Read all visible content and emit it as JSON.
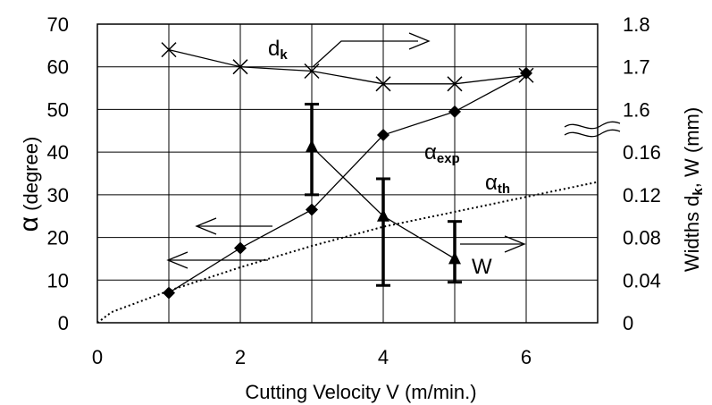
{
  "chart_data": {
    "type": "line",
    "title": "",
    "xlabel": "Cutting Velocity V (m/min.)",
    "ylabel_left_symbol": "α",
    "ylabel_left_rest": " (degree)",
    "ylabel_right_prefix": "Widths d",
    "ylabel_right_sub": "k",
    "ylabel_right_suffix": ", W (mm)",
    "xlim": [
      0,
      7
    ],
    "ylim_left": [
      0,
      70
    ],
    "x_ticks": [
      "0",
      "2",
      "4",
      "6"
    ],
    "y_left_ticks": [
      "0",
      "10",
      "20",
      "30",
      "40",
      "50",
      "60",
      "70"
    ],
    "y_right_ticks_upper": [
      "1.6",
      "1.7",
      "1.8"
    ],
    "y_right_ticks_lower": [
      "0",
      "0.04",
      "0.08",
      "0.12",
      "0.16"
    ],
    "grid": true,
    "series": [
      {
        "name": "dk",
        "axis": "right-upper",
        "marker": "x",
        "x": [
          1,
          2,
          3,
          4,
          5,
          6
        ],
        "values": [
          1.74,
          1.7,
          1.69,
          1.66,
          1.66,
          1.68
        ]
      },
      {
        "name": "αexp",
        "axis": "left",
        "marker": "diamond",
        "x": [
          1,
          2,
          3,
          4,
          5,
          6
        ],
        "values": [
          7,
          17.5,
          26.5,
          44,
          49.5,
          58.5
        ]
      },
      {
        "name": "αth",
        "axis": "left",
        "style": "dotted",
        "x": [
          0,
          0.2,
          1,
          2,
          3,
          4,
          5,
          6,
          7
        ],
        "values": [
          0,
          2.5,
          7.5,
          13,
          18,
          22.5,
          26,
          29.5,
          33
        ]
      },
      {
        "name": "W",
        "axis": "right-lower",
        "marker": "triangle",
        "x": [
          3,
          4,
          5
        ],
        "values": [
          0.165,
          0.1,
          0.06
        ],
        "error_low": [
          0.12,
          0.035,
          0.038
        ],
        "error_high": [
          0.205,
          0.135,
          0.095
        ]
      }
    ]
  },
  "annotations": {
    "dk_main": "d",
    "dk_sub": "k",
    "alpha_exp_main": "α",
    "alpha_exp_sub": "exp",
    "alpha_th_main": "α",
    "alpha_th_sub": "th",
    "w_label": "W"
  }
}
